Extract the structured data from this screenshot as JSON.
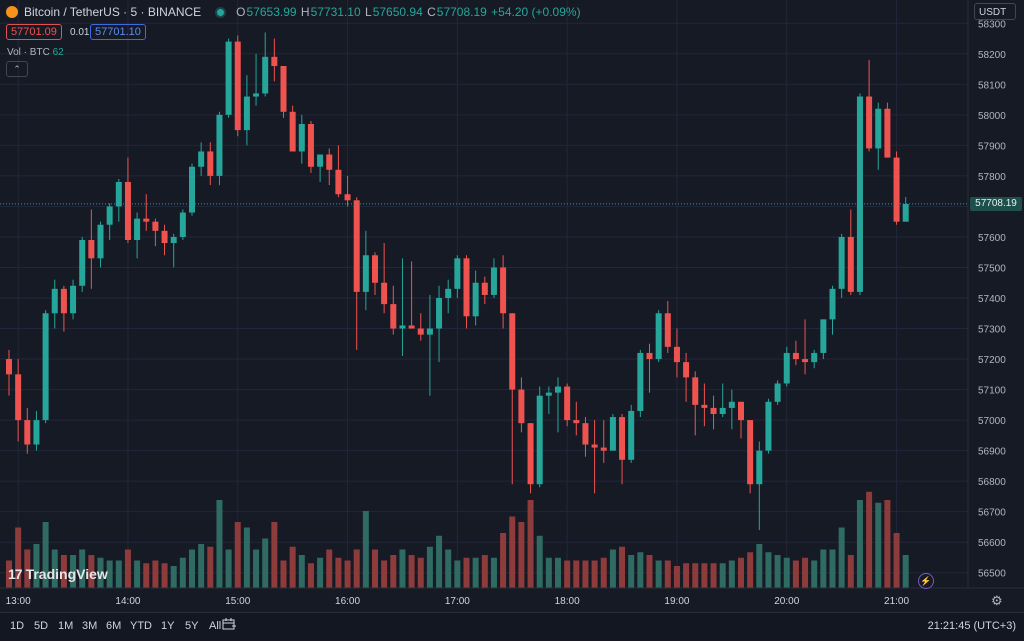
{
  "header": {
    "symbol": "Bitcoin / TetherUS · 5 · BINANCE",
    "o_label": "O",
    "o_value": "57653.99",
    "h_label": "H",
    "h_value": "57731.10",
    "l_label": "L",
    "l_value": "57650.94",
    "c_label": "C",
    "c_value": "57708.19",
    "change": "+54.20 (+0.09%)",
    "bid": "57701.09",
    "spread": "0.01",
    "ask": "57701.10",
    "vol_label": "Vol · BTC",
    "vol_value": "62",
    "collapse_glyph": "⌃",
    "currency": "USDT",
    "last_price_label": "57708.19"
  },
  "branding": {
    "logo_text": "TradingView",
    "logo_mark": "17"
  },
  "bottom_bar": {
    "timeframes": [
      "1D",
      "5D",
      "1M",
      "3M",
      "6M",
      "YTD",
      "1Y",
      "5Y",
      "All"
    ],
    "clock": "21:21:45 (UTC+3)"
  },
  "icons": {
    "settings": "gear-icon",
    "replay": "calendar-range-icon",
    "flash": "lightning-icon"
  },
  "colors": {
    "up": "#26a69a",
    "down": "#ef5350",
    "up_volume": "#2f6b63",
    "down_volume": "#8e3b3b",
    "background": "#161a25",
    "grid": "#22263a"
  },
  "chart_data": {
    "type": "candlestick",
    "interval_minutes": 5,
    "y_ticks": [
      56500,
      56600,
      56700,
      56800,
      56900,
      57000,
      57100,
      57200,
      57300,
      57400,
      57500,
      57600,
      57700,
      57800,
      57900,
      58000,
      58100,
      58200,
      58300
    ],
    "ylim": [
      56450,
      58350
    ],
    "x_tick_labels": [
      "13:00",
      "14:00",
      "15:00",
      "16:00",
      "17:00",
      "18:00",
      "19:00",
      "20:00",
      "21:00"
    ],
    "grid": true,
    "last_price": 57708.19,
    "candles": [
      [
        57200,
        57230,
        57080,
        57150,
        50
      ],
      [
        57150,
        57200,
        56930,
        57000,
        110
      ],
      [
        57000,
        57040,
        56890,
        56920,
        70
      ],
      [
        56920,
        57030,
        56900,
        57000,
        80
      ],
      [
        57000,
        57360,
        56990,
        57350,
        120
      ],
      [
        57350,
        57460,
        57300,
        57430,
        70
      ],
      [
        57430,
        57440,
        57290,
        57350,
        60
      ],
      [
        57350,
        57460,
        57330,
        57440,
        60
      ],
      [
        57440,
        57600,
        57420,
        57590,
        70
      ],
      [
        57590,
        57690,
        57430,
        57530,
        60
      ],
      [
        57530,
        57650,
        57500,
        57640,
        55
      ],
      [
        57640,
        57710,
        57590,
        57700,
        50
      ],
      [
        57700,
        57790,
        57650,
        57780,
        50
      ],
      [
        57780,
        57860,
        57580,
        57590,
        70
      ],
      [
        57590,
        57680,
        57530,
        57660,
        50
      ],
      [
        57660,
        57740,
        57620,
        57650,
        45
      ],
      [
        57650,
        57660,
        57570,
        57620,
        50
      ],
      [
        57620,
        57640,
        57540,
        57580,
        45
      ],
      [
        57580,
        57610,
        57500,
        57600,
        40
      ],
      [
        57600,
        57690,
        57590,
        57680,
        55
      ],
      [
        57680,
        57840,
        57670,
        57830,
        70
      ],
      [
        57830,
        57910,
        57800,
        57880,
        80
      ],
      [
        57880,
        57910,
        57770,
        57800,
        75
      ],
      [
        57800,
        58010,
        57770,
        58000,
        160
      ],
      [
        58000,
        58250,
        57990,
        58240,
        70
      ],
      [
        58240,
        58260,
        57930,
        57950,
        120
      ],
      [
        57950,
        58130,
        57900,
        58060,
        110
      ],
      [
        58060,
        58200,
        58030,
        58070,
        70
      ],
      [
        58070,
        58270,
        58060,
        58190,
        90
      ],
      [
        58190,
        58250,
        58110,
        58160,
        120
      ],
      [
        58160,
        58160,
        57990,
        58010,
        50
      ],
      [
        58010,
        58030,
        57880,
        57880,
        75
      ],
      [
        57880,
        58000,
        57840,
        57970,
        60
      ],
      [
        57970,
        57980,
        57810,
        57830,
        45
      ],
      [
        57830,
        57870,
        57780,
        57870,
        55
      ],
      [
        57870,
        57890,
        57770,
        57820,
        70
      ],
      [
        57820,
        57900,
        57730,
        57740,
        55
      ],
      [
        57740,
        57800,
        57700,
        57720,
        50
      ],
      [
        57720,
        57730,
        57230,
        57420,
        70
      ],
      [
        57420,
        57620,
        57360,
        57540,
        140
      ],
      [
        57540,
        57550,
        57410,
        57450,
        70
      ],
      [
        57450,
        57580,
        57350,
        57380,
        50
      ],
      [
        57380,
        57440,
        57280,
        57300,
        60
      ],
      [
        57300,
        57530,
        57210,
        57310,
        70
      ],
      [
        57310,
        57520,
        57300,
        57300,
        60
      ],
      [
        57300,
        57350,
        57260,
        57280,
        55
      ],
      [
        57280,
        57410,
        57080,
        57300,
        75
      ],
      [
        57300,
        57440,
        57190,
        57400,
        95
      ],
      [
        57400,
        57460,
        57350,
        57430,
        70
      ],
      [
        57430,
        57540,
        57400,
        57530,
        50
      ],
      [
        57530,
        57540,
        57300,
        57340,
        55
      ],
      [
        57340,
        57490,
        57310,
        57450,
        55
      ],
      [
        57450,
        57470,
        57380,
        57410,
        60
      ],
      [
        57410,
        57530,
        57400,
        57500,
        55
      ],
      [
        57500,
        57540,
        57300,
        57350,
        100
      ],
      [
        57350,
        57350,
        56790,
        57100,
        130
      ],
      [
        57100,
        57140,
        56960,
        56990,
        120
      ],
      [
        56990,
        56990,
        56760,
        56790,
        160
      ],
      [
        56790,
        57110,
        56780,
        57080,
        95
      ],
      [
        57080,
        57110,
        57020,
        57090,
        55
      ],
      [
        57090,
        57140,
        56960,
        57110,
        55
      ],
      [
        57110,
        57120,
        56980,
        57000,
        50
      ],
      [
        57000,
        57060,
        56950,
        56990,
        50
      ],
      [
        56990,
        57010,
        56880,
        56920,
        50
      ],
      [
        56920,
        57000,
        56760,
        56910,
        50
      ],
      [
        56910,
        57000,
        56860,
        56900,
        55
      ],
      [
        56900,
        57020,
        56900,
        57010,
        70
      ],
      [
        57010,
        57020,
        56790,
        56870,
        75
      ],
      [
        56870,
        57050,
        56860,
        57030,
        60
      ],
      [
        57030,
        57230,
        57010,
        57220,
        65
      ],
      [
        57220,
        57250,
        57090,
        57200,
        60
      ],
      [
        57200,
        57360,
        57190,
        57350,
        50
      ],
      [
        57350,
        57390,
        57220,
        57240,
        50
      ],
      [
        57240,
        57300,
        57140,
        57190,
        40
      ],
      [
        57190,
        57220,
        57060,
        57140,
        45
      ],
      [
        57140,
        57160,
        56950,
        57050,
        45
      ],
      [
        57050,
        57120,
        56980,
        57040,
        45
      ],
      [
        57040,
        57080,
        56970,
        57020,
        45
      ],
      [
        57020,
        57120,
        57010,
        57040,
        45
      ],
      [
        57040,
        57100,
        56970,
        57060,
        50
      ],
      [
        57060,
        57060,
        56940,
        57000,
        55
      ],
      [
        57000,
        57000,
        56760,
        56790,
        65
      ],
      [
        56790,
        56930,
        56640,
        56900,
        80
      ],
      [
        56900,
        57070,
        56890,
        57060,
        65
      ],
      [
        57060,
        57130,
        57050,
        57120,
        60
      ],
      [
        57120,
        57240,
        57110,
        57220,
        55
      ],
      [
        57220,
        57260,
        57180,
        57200,
        50
      ],
      [
        57200,
        57330,
        57150,
        57190,
        55
      ],
      [
        57190,
        57230,
        57170,
        57220,
        50
      ],
      [
        57220,
        57330,
        57200,
        57330,
        70
      ],
      [
        57330,
        57440,
        57280,
        57430,
        70
      ],
      [
        57430,
        57610,
        57400,
        57600,
        110
      ],
      [
        57600,
        57690,
        57410,
        57420,
        60
      ],
      [
        57420,
        58070,
        57410,
        58060,
        160
      ],
      [
        58060,
        58180,
        57880,
        57890,
        175
      ],
      [
        57890,
        58040,
        57820,
        58020,
        155
      ],
      [
        58020,
        58040,
        57860,
        57860,
        160
      ],
      [
        57860,
        57880,
        57640,
        57650,
        100
      ],
      [
        57650,
        57731,
        57650,
        57708,
        60
      ]
    ]
  }
}
